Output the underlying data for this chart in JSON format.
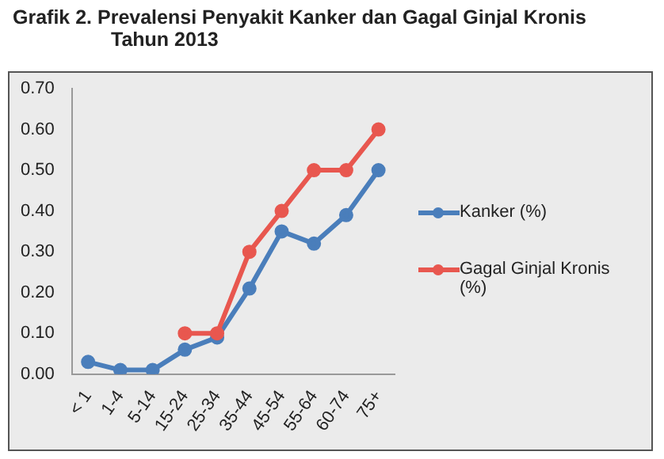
{
  "chart_data": {
    "type": "line",
    "title": "Grafik 2.  Prevalensi Penyakit Kanker dan Gagal Ginjal Kronis Tahun 2013",
    "categories": [
      "< 1",
      "1-4",
      "5-14",
      "15-24",
      "25-34",
      "35-44",
      "45-54",
      "55-64",
      "60-74",
      "75+"
    ],
    "series": [
      {
        "name": "Kanker (%)",
        "color": "#4a7ebb",
        "values": [
          0.03,
          0.01,
          0.01,
          0.06,
          0.09,
          0.21,
          0.35,
          0.32,
          0.39,
          0.5
        ]
      },
      {
        "name": "Gagal Ginjal Kronis (%)",
        "color": "#e8574f",
        "values": [
          null,
          null,
          null,
          0.1,
          0.1,
          0.3,
          0.4,
          0.5,
          0.5,
          0.6
        ]
      }
    ],
    "ylim": [
      0,
      0.7
    ],
    "yticks": [
      {
        "value": 0,
        "label": "0.00"
      },
      {
        "value": 0.1,
        "label": "0.10"
      },
      {
        "value": 0.2,
        "label": "0.20"
      },
      {
        "value": 0.3,
        "label": "0.30"
      },
      {
        "value": 0.4,
        "label": "0.40"
      },
      {
        "value": 0.5,
        "label": "0.50"
      },
      {
        "value": 0.6,
        "label": "0.60"
      },
      {
        "value": 0.7,
        "label": "0.70"
      }
    ],
    "grid": false,
    "legend": "right",
    "marker": "circle",
    "line_style": "solid"
  }
}
